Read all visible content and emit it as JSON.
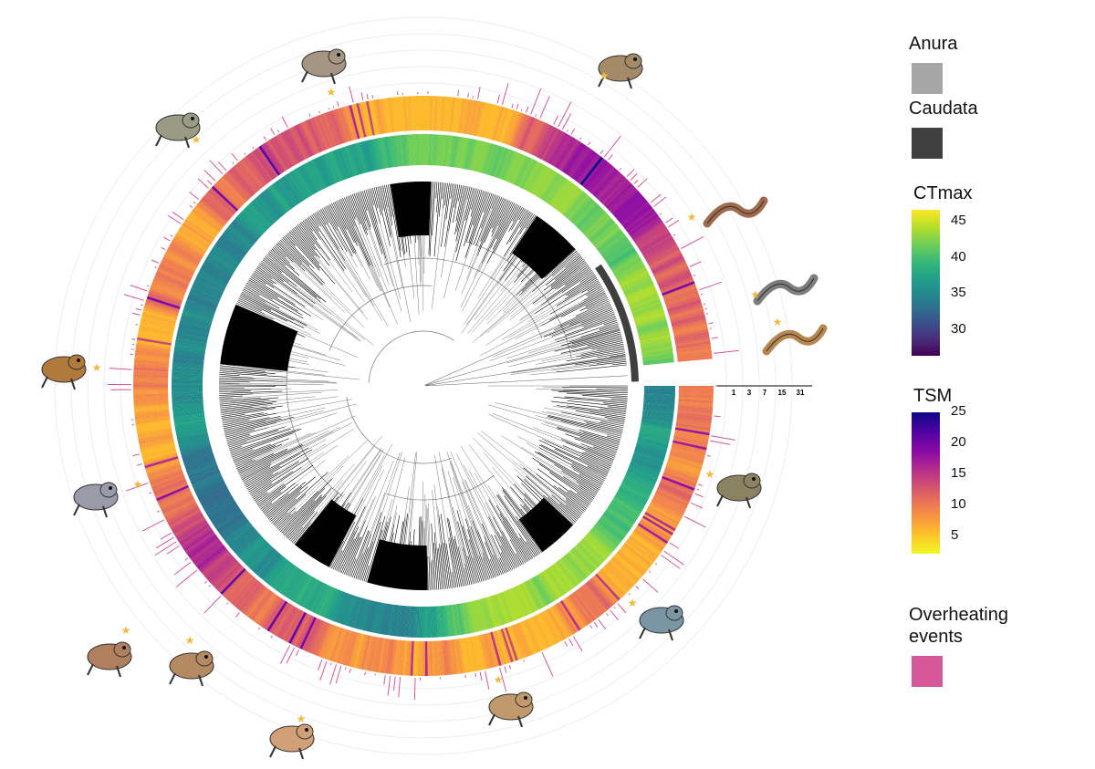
{
  "legend": {
    "anura": {
      "title": "Anura",
      "color": "#a6a6a6"
    },
    "caudata": {
      "title": "Caudata",
      "color": "#3f3f3f"
    },
    "ctmax": {
      "title": "CTmax",
      "ticks": [
        "45",
        "40",
        "35",
        "30"
      ],
      "tick_values": [
        45,
        40,
        35,
        30
      ],
      "range": [
        26,
        46.5
      ]
    },
    "tsm": {
      "title": "TSM",
      "ticks": [
        "25",
        "20",
        "15",
        "10",
        "5"
      ],
      "tick_values": [
        25,
        20,
        15,
        10,
        5
      ],
      "range": [
        2,
        25
      ]
    },
    "overheating": {
      "title_line1": "Overheating",
      "title_line2": "events",
      "color": "#d6569a"
    }
  },
  "overheating_scale": {
    "labels": [
      "1",
      "3",
      "7",
      "15",
      "31"
    ]
  },
  "colors": {
    "anura": "#a6a6a6",
    "caudata": "#3f3f3f",
    "overheating": "#d6569a",
    "star": "#f5b83d",
    "tree": "#000000"
  },
  "icons": [
    "frog-icon",
    "toad-icon",
    "salamander-icon",
    "newt-icon",
    "treefrog-icon"
  ]
}
